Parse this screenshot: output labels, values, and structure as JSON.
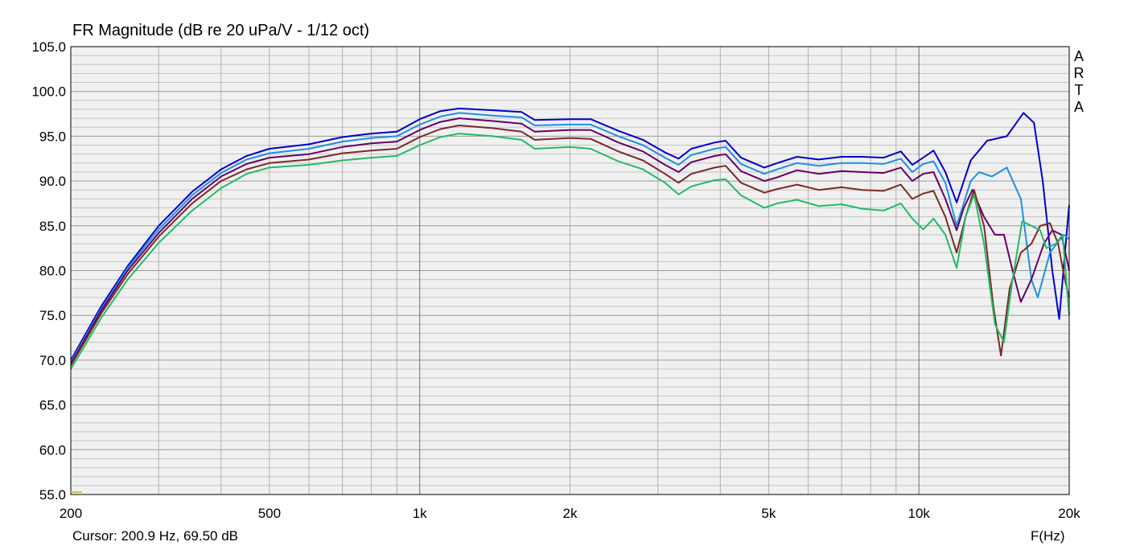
{
  "app": {
    "watermark": [
      "A",
      "R",
      "T",
      "A"
    ]
  },
  "chart_data": {
    "type": "line",
    "title": "FR Magnitude (dB re 20 uPa/V - 1/12 oct)",
    "xlabel": "F(Hz)",
    "ylabel": "",
    "xscale": "log",
    "xlim": [
      200,
      20000
    ],
    "ylim": [
      55,
      105
    ],
    "grid": true,
    "yticks": [
      {
        "value": 105,
        "label": "105.0"
      },
      {
        "value": 100,
        "label": "100.0"
      },
      {
        "value": 95,
        "label": "95.0"
      },
      {
        "value": 90,
        "label": "90.0"
      },
      {
        "value": 85,
        "label": "85.0"
      },
      {
        "value": 80,
        "label": "80.0"
      },
      {
        "value": 75,
        "label": "75.0"
      },
      {
        "value": 70,
        "label": "70.0"
      },
      {
        "value": 65,
        "label": "65.0"
      },
      {
        "value": 60,
        "label": "60.0"
      },
      {
        "value": 55,
        "label": "55.0"
      }
    ],
    "xticks": [
      {
        "value": 200,
        "label": "200"
      },
      {
        "value": 500,
        "label": "500"
      },
      {
        "value": 1000,
        "label": "1k"
      },
      {
        "value": 2000,
        "label": "2k"
      },
      {
        "value": 5000,
        "label": "5k"
      },
      {
        "value": 10000,
        "label": "10k"
      },
      {
        "value": 20000,
        "label": "20k"
      }
    ],
    "cursor_text": "Cursor: 200.9 Hz, 69.50 dB",
    "series": [
      {
        "color": "#0000cc",
        "points": [
          [
            200,
            70
          ],
          [
            230,
            76
          ],
          [
            260,
            80.5
          ],
          [
            300,
            85
          ],
          [
            350,
            88.8
          ],
          [
            400,
            91.3
          ],
          [
            450,
            92.8
          ],
          [
            500,
            93.6
          ],
          [
            600,
            94.1
          ],
          [
            700,
            94.9
          ],
          [
            800,
            95.3
          ],
          [
            900,
            95.5
          ],
          [
            1000,
            96.9
          ],
          [
            1100,
            97.8
          ],
          [
            1200,
            98.1
          ],
          [
            1400,
            97.9
          ],
          [
            1600,
            97.7
          ],
          [
            1700,
            96.8
          ],
          [
            2000,
            96.9
          ],
          [
            2200,
            96.9
          ],
          [
            2500,
            95.6
          ],
          [
            2800,
            94.6
          ],
          [
            3100,
            93.2
          ],
          [
            3300,
            92.5
          ],
          [
            3500,
            93.6
          ],
          [
            3900,
            94.3
          ],
          [
            4100,
            94.5
          ],
          [
            4400,
            92.6
          ],
          [
            4900,
            91.5
          ],
          [
            5200,
            92.0
          ],
          [
            5700,
            92.7
          ],
          [
            6300,
            92.4
          ],
          [
            7000,
            92.7
          ],
          [
            7700,
            92.7
          ],
          [
            8500,
            92.6
          ],
          [
            9200,
            93.3
          ],
          [
            9700,
            91.8
          ],
          [
            10200,
            92.6
          ],
          [
            10700,
            93.4
          ],
          [
            11300,
            91.0
          ],
          [
            11900,
            87.6
          ],
          [
            12700,
            92.3
          ],
          [
            13700,
            94.5
          ],
          [
            15000,
            95.0
          ],
          [
            16200,
            97.6
          ],
          [
            17000,
            96.5
          ],
          [
            17700,
            90.0
          ],
          [
            18500,
            80.0
          ],
          [
            19100,
            74.6
          ],
          [
            19900,
            86.0
          ],
          [
            20000,
            87.3
          ]
        ]
      },
      {
        "color": "#1e90e6",
        "points": [
          [
            200,
            69.8
          ],
          [
            230,
            75.7
          ],
          [
            260,
            80.3
          ],
          [
            300,
            84.6
          ],
          [
            350,
            88.4
          ],
          [
            400,
            90.9
          ],
          [
            450,
            92.4
          ],
          [
            500,
            93.1
          ],
          [
            600,
            93.6
          ],
          [
            700,
            94.4
          ],
          [
            800,
            94.8
          ],
          [
            900,
            95.0
          ],
          [
            1000,
            96.3
          ],
          [
            1100,
            97.2
          ],
          [
            1200,
            97.6
          ],
          [
            1400,
            97.3
          ],
          [
            1600,
            97.1
          ],
          [
            1700,
            96.2
          ],
          [
            2000,
            96.3
          ],
          [
            2200,
            96.3
          ],
          [
            2500,
            95.0
          ],
          [
            2800,
            94.0
          ],
          [
            3100,
            92.6
          ],
          [
            3300,
            91.8
          ],
          [
            3500,
            92.9
          ],
          [
            3900,
            93.6
          ],
          [
            4100,
            93.8
          ],
          [
            4400,
            91.9
          ],
          [
            4900,
            90.8
          ],
          [
            5200,
            91.3
          ],
          [
            5700,
            92.0
          ],
          [
            6300,
            91.7
          ],
          [
            7000,
            92.0
          ],
          [
            7700,
            92.0
          ],
          [
            8500,
            91.9
          ],
          [
            9200,
            92.5
          ],
          [
            9700,
            91.0
          ],
          [
            10200,
            91.9
          ],
          [
            10700,
            92.2
          ],
          [
            11300,
            89.8
          ],
          [
            11900,
            85.0
          ],
          [
            12700,
            90.0
          ],
          [
            13200,
            91.0
          ],
          [
            14000,
            90.5
          ],
          [
            15000,
            91.5
          ],
          [
            16000,
            88.0
          ],
          [
            16800,
            79.0
          ],
          [
            17300,
            77.0
          ],
          [
            18300,
            82.0
          ],
          [
            19500,
            84.0
          ],
          [
            20000,
            83.5
          ]
        ]
      },
      {
        "color": "#660066",
        "points": [
          [
            200,
            69.6
          ],
          [
            230,
            75.5
          ],
          [
            260,
            80.0
          ],
          [
            300,
            84.2
          ],
          [
            350,
            88.0
          ],
          [
            400,
            90.5
          ],
          [
            450,
            91.9
          ],
          [
            500,
            92.6
          ],
          [
            600,
            93.0
          ],
          [
            700,
            93.8
          ],
          [
            800,
            94.2
          ],
          [
            900,
            94.4
          ],
          [
            1000,
            95.7
          ],
          [
            1100,
            96.6
          ],
          [
            1200,
            97.0
          ],
          [
            1400,
            96.7
          ],
          [
            1600,
            96.4
          ],
          [
            1700,
            95.5
          ],
          [
            2000,
            95.7
          ],
          [
            2200,
            95.7
          ],
          [
            2500,
            94.3
          ],
          [
            2800,
            93.3
          ],
          [
            3100,
            91.8
          ],
          [
            3300,
            91.0
          ],
          [
            3500,
            92.1
          ],
          [
            3900,
            92.8
          ],
          [
            4100,
            93.0
          ],
          [
            4400,
            91.1
          ],
          [
            4900,
            90.0
          ],
          [
            5200,
            90.4
          ],
          [
            5700,
            91.2
          ],
          [
            6300,
            90.8
          ],
          [
            7000,
            91.1
          ],
          [
            7700,
            91.0
          ],
          [
            8500,
            90.9
          ],
          [
            9200,
            91.5
          ],
          [
            9700,
            90.0
          ],
          [
            10200,
            90.8
          ],
          [
            10700,
            91.0
          ],
          [
            11300,
            88.0
          ],
          [
            11900,
            84.5
          ],
          [
            12300,
            87.0
          ],
          [
            12800,
            89.0
          ],
          [
            13500,
            86.0
          ],
          [
            14200,
            84.0
          ],
          [
            14800,
            84.0
          ],
          [
            15400,
            80.0
          ],
          [
            16000,
            76.5
          ],
          [
            16800,
            79.0
          ],
          [
            17800,
            83.0
          ],
          [
            18500,
            84.5
          ],
          [
            19300,
            84.0
          ],
          [
            20000,
            80.0
          ]
        ]
      },
      {
        "color": "#7a2a2a",
        "points": [
          [
            200,
            69.4
          ],
          [
            230,
            75.2
          ],
          [
            260,
            79.6
          ],
          [
            300,
            83.8
          ],
          [
            350,
            87.5
          ],
          [
            400,
            90.0
          ],
          [
            450,
            91.3
          ],
          [
            500,
            92.0
          ],
          [
            600,
            92.4
          ],
          [
            700,
            93.1
          ],
          [
            800,
            93.4
          ],
          [
            900,
            93.6
          ],
          [
            1000,
            94.9
          ],
          [
            1100,
            95.8
          ],
          [
            1200,
            96.2
          ],
          [
            1400,
            95.9
          ],
          [
            1600,
            95.5
          ],
          [
            1700,
            94.6
          ],
          [
            2000,
            94.8
          ],
          [
            2200,
            94.7
          ],
          [
            2500,
            93.3
          ],
          [
            2800,
            92.3
          ],
          [
            3100,
            90.8
          ],
          [
            3300,
            89.8
          ],
          [
            3500,
            90.8
          ],
          [
            3900,
            91.5
          ],
          [
            4100,
            91.7
          ],
          [
            4400,
            89.8
          ],
          [
            4900,
            88.7
          ],
          [
            5200,
            89.1
          ],
          [
            5700,
            89.6
          ],
          [
            6300,
            89.0
          ],
          [
            7000,
            89.3
          ],
          [
            7700,
            89.0
          ],
          [
            8500,
            88.9
          ],
          [
            9200,
            89.6
          ],
          [
            9700,
            88.0
          ],
          [
            10200,
            88.6
          ],
          [
            10700,
            88.9
          ],
          [
            11300,
            86.0
          ],
          [
            11900,
            82.0
          ],
          [
            12400,
            86.0
          ],
          [
            12900,
            89.0
          ],
          [
            13500,
            85.0
          ],
          [
            14100,
            76.0
          ],
          [
            14600,
            70.5
          ],
          [
            15200,
            78.0
          ],
          [
            16000,
            82.0
          ],
          [
            16800,
            83.0
          ],
          [
            17500,
            85.0
          ],
          [
            18300,
            85.3
          ],
          [
            19000,
            83.0
          ],
          [
            19600,
            79.0
          ],
          [
            20000,
            77.0
          ]
        ]
      },
      {
        "color": "#22bb66",
        "points": [
          [
            200,
            69.0
          ],
          [
            230,
            74.7
          ],
          [
            260,
            79.0
          ],
          [
            300,
            83.1
          ],
          [
            350,
            86.7
          ],
          [
            400,
            89.2
          ],
          [
            450,
            90.8
          ],
          [
            500,
            91.5
          ],
          [
            600,
            91.8
          ],
          [
            700,
            92.3
          ],
          [
            800,
            92.6
          ],
          [
            900,
            92.8
          ],
          [
            1000,
            94.0
          ],
          [
            1100,
            94.9
          ],
          [
            1200,
            95.3
          ],
          [
            1400,
            95.0
          ],
          [
            1600,
            94.6
          ],
          [
            1700,
            93.6
          ],
          [
            2000,
            93.8
          ],
          [
            2200,
            93.6
          ],
          [
            2500,
            92.2
          ],
          [
            2800,
            91.3
          ],
          [
            3100,
            89.8
          ],
          [
            3300,
            88.5
          ],
          [
            3500,
            89.4
          ],
          [
            3900,
            90.1
          ],
          [
            4100,
            90.2
          ],
          [
            4400,
            88.4
          ],
          [
            4900,
            87.0
          ],
          [
            5200,
            87.5
          ],
          [
            5700,
            87.9
          ],
          [
            6300,
            87.2
          ],
          [
            7000,
            87.4
          ],
          [
            7700,
            86.9
          ],
          [
            8500,
            86.7
          ],
          [
            9200,
            87.5
          ],
          [
            9700,
            85.8
          ],
          [
            10200,
            84.6
          ],
          [
            10700,
            85.8
          ],
          [
            11300,
            84.0
          ],
          [
            11900,
            80.3
          ],
          [
            12400,
            86.0
          ],
          [
            12900,
            88.5
          ],
          [
            13500,
            83.0
          ],
          [
            14200,
            74.0
          ],
          [
            14800,
            72.0
          ],
          [
            15400,
            79.0
          ],
          [
            16100,
            85.5
          ],
          [
            16800,
            85.0
          ],
          [
            17500,
            84.5
          ],
          [
            18000,
            82.5
          ],
          [
            18800,
            83.0
          ],
          [
            19400,
            84.0
          ],
          [
            20000,
            75.0
          ]
        ]
      }
    ]
  }
}
